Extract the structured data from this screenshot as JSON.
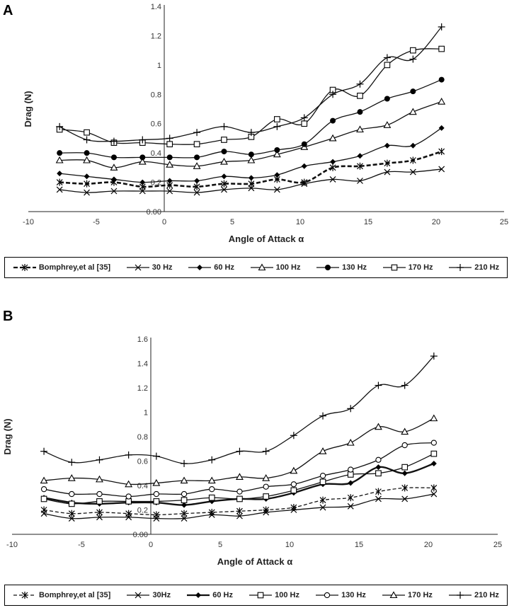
{
  "panels": {
    "a": "A",
    "b": "B"
  },
  "chart_data": [
    {
      "type": "line",
      "panel": "A",
      "title": "",
      "xlabel": "Angle of Attack α",
      "ylabel": "Drag (N)",
      "xlim": [
        -10,
        25
      ],
      "ylim": [
        0,
        1.4
      ],
      "xticks": [
        -10,
        -5,
        0,
        5,
        10,
        15,
        20,
        25
      ],
      "yticks": [
        "0.00",
        "0.2",
        "0.4",
        "0.6",
        "0.8",
        "1",
        "1.2",
        "1.4"
      ],
      "x": [
        -7.7,
        -5.7,
        -3.7,
        -1.6,
        0.4,
        2.4,
        4.4,
        6.4,
        8.3,
        10.3,
        12.4,
        14.4,
        16.4,
        18.3,
        20.4
      ],
      "series": [
        {
          "name": "Bomphrey,et al [35]",
          "marker": "asterisk",
          "dash": "6,3",
          "width": 2.6,
          "values": [
            0.2,
            0.19,
            0.2,
            0.17,
            0.18,
            0.17,
            0.19,
            0.19,
            0.22,
            0.2,
            0.3,
            0.31,
            0.33,
            0.35,
            0.41
          ]
        },
        {
          "name": "30 Hz",
          "marker": "x",
          "dash": "",
          "width": 1.3,
          "values": [
            0.15,
            0.13,
            0.14,
            0.14,
            0.14,
            0.13,
            0.15,
            0.16,
            0.15,
            0.19,
            0.22,
            0.21,
            0.27,
            0.27,
            0.29
          ]
        },
        {
          "name": "60 Hz",
          "marker": "diamond",
          "dash": "",
          "width": 1.3,
          "values": [
            0.26,
            0.24,
            0.22,
            0.2,
            0.21,
            0.21,
            0.24,
            0.23,
            0.25,
            0.31,
            0.34,
            0.38,
            0.45,
            0.45,
            0.57
          ]
        },
        {
          "name": "100 Hz",
          "marker": "triangle",
          "dash": "",
          "width": 1.3,
          "values": [
            0.35,
            0.35,
            0.3,
            0.34,
            0.32,
            0.31,
            0.34,
            0.35,
            0.39,
            0.44,
            0.5,
            0.56,
            0.59,
            0.68,
            0.75
          ]
        },
        {
          "name": "130 Hz",
          "marker": "circle",
          "dash": "",
          "width": 1.3,
          "values": [
            0.4,
            0.4,
            0.37,
            0.37,
            0.37,
            0.37,
            0.41,
            0.39,
            0.42,
            0.46,
            0.62,
            0.68,
            0.77,
            0.82,
            0.9
          ]
        },
        {
          "name": "170 Hz",
          "marker": "square",
          "dash": "",
          "width": 1.3,
          "values": [
            0.56,
            0.54,
            0.47,
            0.47,
            0.46,
            0.46,
            0.49,
            0.51,
            0.63,
            0.6,
            0.83,
            0.79,
            1.0,
            1.1,
            1.11
          ]
        },
        {
          "name": "210 Hz",
          "marker": "plus",
          "dash": "",
          "width": 1.3,
          "values": [
            0.58,
            0.49,
            0.48,
            0.49,
            0.5,
            0.54,
            0.58,
            0.54,
            0.58,
            0.64,
            0.8,
            0.87,
            1.05,
            1.04,
            1.26
          ]
        }
      ]
    },
    {
      "type": "line",
      "panel": "B",
      "title": "",
      "xlabel": "Angle of Attack α",
      "ylabel": "Drag (N)",
      "xlim": [
        -10,
        25
      ],
      "ylim": [
        0,
        1.6
      ],
      "xticks": [
        -10,
        -5,
        0,
        5,
        10,
        15,
        20,
        25
      ],
      "yticks": [
        "0.00",
        "0.2",
        "0.4",
        "0.6",
        "0.8",
        "1",
        "1.2",
        "1.4",
        "1.6"
      ],
      "x": [
        -7.7,
        -5.7,
        -3.7,
        -1.6,
        0.4,
        2.4,
        4.4,
        6.4,
        8.3,
        10.3,
        12.4,
        14.4,
        16.4,
        18.3,
        20.4
      ],
      "series": [
        {
          "name": "Bomphrey,et al [35]",
          "marker": "asterisk",
          "dash": "5,3",
          "width": 1.3,
          "values": [
            0.2,
            0.17,
            0.18,
            0.17,
            0.16,
            0.17,
            0.18,
            0.19,
            0.2,
            0.22,
            0.28,
            0.3,
            0.35,
            0.38,
            0.38
          ]
        },
        {
          "name": "30Hz",
          "marker": "x",
          "dash": "",
          "width": 1.3,
          "values": [
            0.17,
            0.13,
            0.14,
            0.14,
            0.13,
            0.13,
            0.16,
            0.15,
            0.18,
            0.2,
            0.22,
            0.23,
            0.29,
            0.29,
            0.33
          ]
        },
        {
          "name": "60 Hz",
          "marker": "diamond",
          "dash": "",
          "width": 2.4,
          "values": [
            0.3,
            0.26,
            0.25,
            0.26,
            0.26,
            0.24,
            0.27,
            0.29,
            0.29,
            0.34,
            0.41,
            0.42,
            0.55,
            0.5,
            0.58
          ]
        },
        {
          "name": "100 Hz",
          "marker": "square",
          "dash": "",
          "width": 1.3,
          "values": [
            0.29,
            0.25,
            0.27,
            0.27,
            0.27,
            0.28,
            0.3,
            0.29,
            0.31,
            0.36,
            0.43,
            0.49,
            0.5,
            0.55,
            0.66
          ]
        },
        {
          "name": "130 Hz",
          "marker": "circle",
          "dash": "",
          "width": 1.3,
          "values": [
            0.37,
            0.33,
            0.33,
            0.31,
            0.33,
            0.33,
            0.37,
            0.35,
            0.39,
            0.41,
            0.48,
            0.53,
            0.61,
            0.73,
            0.75
          ]
        },
        {
          "name": "170 Hz",
          "marker": "triangle",
          "dash": "",
          "width": 1.3,
          "values": [
            0.44,
            0.46,
            0.45,
            0.41,
            0.42,
            0.44,
            0.44,
            0.47,
            0.46,
            0.52,
            0.68,
            0.75,
            0.88,
            0.84,
            0.95
          ]
        },
        {
          "name": "210 Hz",
          "marker": "plus",
          "dash": "",
          "width": 1.3,
          "values": [
            0.68,
            0.59,
            0.61,
            0.65,
            0.64,
            0.58,
            0.61,
            0.68,
            0.68,
            0.81,
            0.97,
            1.03,
            1.22,
            1.22,
            1.46
          ]
        }
      ]
    }
  ]
}
